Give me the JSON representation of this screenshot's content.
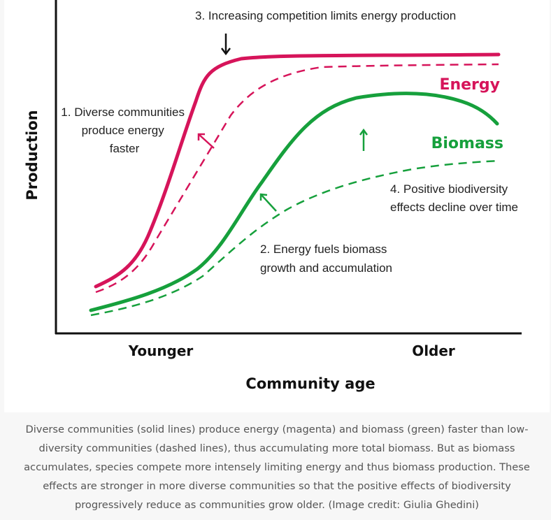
{
  "colors": {
    "energy": "#d6145a",
    "biomass": "#16a03c",
    "axis": "#111111"
  },
  "annotations": {
    "a1": [
      "1. Diverse communities",
      "produce energy",
      "faster"
    ],
    "a2": [
      "2. Energy fuels biomass",
      "growth and accumulation"
    ],
    "a3": "3. Increasing competition limits energy production",
    "a4": [
      "4. Positive biodiversity",
      "effects decline over time"
    ]
  },
  "labels": {
    "energy": "Energy",
    "biomass": "Biomass"
  },
  "axes": {
    "y_label": "Production",
    "x_label": "Community age",
    "x_ticks": [
      "Younger",
      "Older"
    ]
  },
  "caption": "Diverse communities (solid lines) produce energy (magenta) and biomass (green) faster than low-diversity communities (dashed lines), thus accumulating more total biomass. But as biomass accumulates, species compete more intensely limiting energy and thus biomass production. These effects are stronger in more diverse communities so that the positive effects of biodiversity progressively reduce as communities grow older. (Image credit: Giulia Ghedini)"
}
